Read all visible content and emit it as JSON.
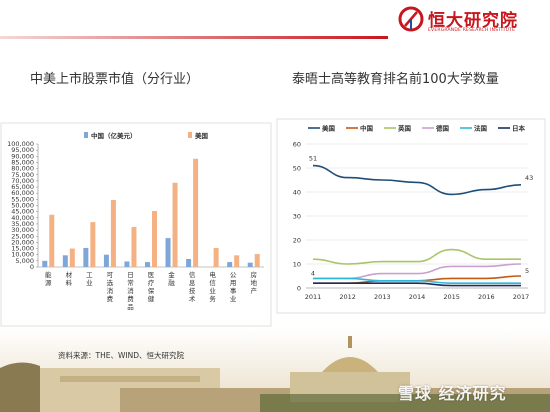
{
  "brand": {
    "name": "恒大研究院",
    "subtitle": "EVERGRANDE RESEARCH INSTITUTE",
    "color": "#c8161d"
  },
  "left_chart_title": "中美上市股票市值（分行业）",
  "right_chart_title": "泰晤士高等教育排名前100大学数量",
  "source": "资料来源：THE、WIND、恒大研究院",
  "watermark": "雪球 经济研究",
  "chart_data": [
    {
      "type": "bar",
      "categories": [
        "能源",
        "材料",
        "工业",
        "可选消费",
        "日常消费品",
        "医疗保健",
        "金融",
        "信息技术",
        "电信业务",
        "公用事业",
        "房地产"
      ],
      "series": [
        {
          "name": "中国（亿美元）",
          "color": "#7ea7d8",
          "values": [
            5000,
            9500,
            15500,
            10000,
            4500,
            4000,
            23500,
            6500,
            0,
            4000,
            3500
          ]
        },
        {
          "name": "美国",
          "color": "#f4b183",
          "values": [
            42500,
            15000,
            36500,
            54500,
            32500,
            45500,
            68500,
            88000,
            15500,
            9500,
            10500
          ]
        }
      ],
      "ylim": [
        0,
        100000
      ],
      "yticks": [
        0,
        5000,
        10000,
        15000,
        20000,
        25000,
        30000,
        35000,
        40000,
        45000,
        50000,
        55000,
        60000,
        65000,
        70000,
        75000,
        80000,
        85000,
        90000,
        95000,
        100000
      ],
      "ytick_labels": [
        "0",
        "5,000",
        "10,000",
        "15,000",
        "20,000",
        "25,000",
        "30,000",
        "35,000",
        "40,000",
        "45,000",
        "50,000",
        "55,000",
        "60,000",
        "65,000",
        "70,000",
        "75,000",
        "80,000",
        "85,000",
        "90,000",
        "95,000",
        "100,000"
      ],
      "legend": "top",
      "grid": false
    },
    {
      "type": "line",
      "x": [
        2011,
        2012,
        2013,
        2014,
        2015,
        2016,
        2017
      ],
      "series": [
        {
          "name": "美国",
          "color": "#1f4e79",
          "values": [
            51,
            46,
            45,
            44,
            39,
            41,
            43
          ]
        },
        {
          "name": "中国",
          "color": "#c55a11",
          "values": [
            2,
            2,
            3,
            3,
            4,
            4,
            5
          ]
        },
        {
          "name": "英国",
          "color": "#a9c566",
          "values": [
            12,
            10,
            11,
            11,
            16,
            12,
            12
          ]
        },
        {
          "name": "德国",
          "color": "#c9a0d0",
          "values": [
            4,
            4,
            6,
            6,
            9,
            9,
            10
          ]
        },
        {
          "name": "法国",
          "color": "#2eb8d8",
          "values": [
            4,
            4,
            3,
            3,
            2,
            2,
            2
          ]
        },
        {
          "name": "日本",
          "color": "#1c2e5e",
          "values": [
            2,
            2,
            2,
            2,
            1,
            1,
            1
          ]
        }
      ],
      "ylim": [
        0,
        60
      ],
      "yticks": [
        0,
        10,
        20,
        30,
        40,
        50,
        60
      ],
      "data_labels": [
        {
          "series": "美国",
          "x": 2011,
          "text": "51"
        },
        {
          "series": "美国",
          "x": 2017,
          "text": "43"
        },
        {
          "series": "德国",
          "x": 2011,
          "text": "4"
        },
        {
          "series": "中国",
          "x": 2017,
          "text": "5"
        }
      ],
      "legend": "top",
      "grid": true
    }
  ]
}
